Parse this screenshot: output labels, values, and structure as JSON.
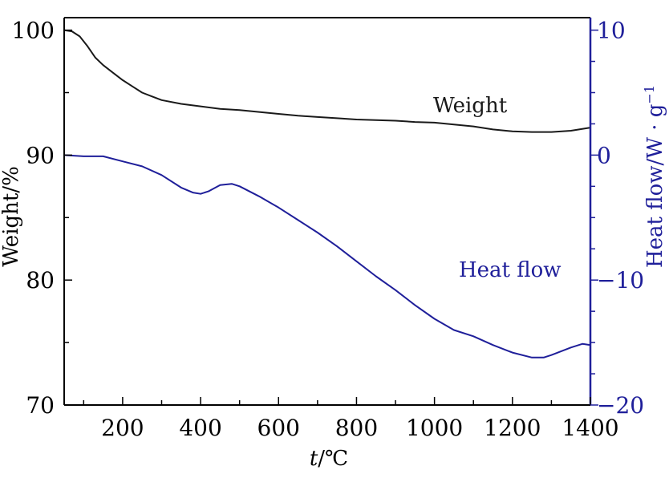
{
  "chart_data": {
    "type": "line",
    "xlabel_italic": "t",
    "xlabel_unit": "/℃",
    "ylabel": "Weight/%",
    "y2label": "Heat flow/W · g",
    "y2label_sup": "−1",
    "xlim": [
      50,
      1400
    ],
    "ylim": [
      70,
      101
    ],
    "y2lim": [
      -20,
      11
    ],
    "x_ticks": [
      "200",
      "400",
      "600",
      "800",
      "1000",
      "1200",
      "1400"
    ],
    "x_tick_values": [
      200,
      400,
      600,
      800,
      1000,
      1200,
      1400
    ],
    "y_ticks": [
      "70",
      "80",
      "90",
      "100"
    ],
    "y_tick_values": [
      70,
      80,
      90,
      100
    ],
    "y2_ticks": [
      "−20",
      "−10",
      "0",
      "10"
    ],
    "y2_tick_values": [
      -20,
      -10,
      0,
      10
    ],
    "series": [
      {
        "name": "Weight",
        "axis": "left",
        "color": "#1a1a1a",
        "x": [
          50,
          70,
          90,
          110,
          130,
          150,
          175,
          200,
          225,
          250,
          275,
          300,
          350,
          400,
          450,
          500,
          550,
          600,
          650,
          700,
          750,
          800,
          850,
          900,
          950,
          1000,
          1050,
          1100,
          1150,
          1200,
          1250,
          1300,
          1350,
          1400
        ],
        "values": [
          100.0,
          99.9,
          99.5,
          98.7,
          97.8,
          97.2,
          96.6,
          96.0,
          95.5,
          95.0,
          94.7,
          94.4,
          94.1,
          93.9,
          93.7,
          93.6,
          93.45,
          93.3,
          93.15,
          93.05,
          92.95,
          92.85,
          92.8,
          92.75,
          92.65,
          92.6,
          92.45,
          92.3,
          92.05,
          91.9,
          91.85,
          91.85,
          91.95,
          92.2
        ]
      },
      {
        "name": "Heat flow",
        "axis": "right",
        "color": "#1f1f9a",
        "x": [
          50,
          100,
          150,
          200,
          250,
          300,
          350,
          380,
          400,
          420,
          450,
          480,
          500,
          550,
          600,
          650,
          700,
          750,
          800,
          850,
          900,
          950,
          1000,
          1050,
          1100,
          1150,
          1200,
          1250,
          1280,
          1300,
          1350,
          1380,
          1400
        ],
        "values": [
          0.0,
          -0.1,
          -0.1,
          -0.5,
          -0.9,
          -1.6,
          -2.6,
          -3.0,
          -3.1,
          -2.9,
          -2.4,
          -2.3,
          -2.5,
          -3.3,
          -4.2,
          -5.2,
          -6.2,
          -7.3,
          -8.5,
          -9.7,
          -10.8,
          -12.0,
          -13.1,
          -14.0,
          -14.5,
          -15.2,
          -15.8,
          -16.2,
          -16.2,
          -16.0,
          -15.4,
          -15.1,
          -15.2
        ]
      }
    ],
    "annotations": [
      {
        "text": "Weight",
        "color": "#1a1a1a"
      },
      {
        "text": "Heat flow",
        "color": "#1f1f9a"
      }
    ],
    "grid": false,
    "legend": "none"
  }
}
